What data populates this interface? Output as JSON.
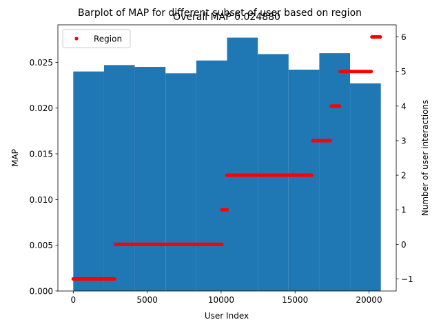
{
  "chart_data": {
    "type": "bar",
    "title": "Barplot of MAP for different subset of user based on region",
    "subtitle": "Overall MAP 0.024880",
    "xlabel": "User Index",
    "ylabel": "MAP",
    "y2label": "Number of user interactions",
    "xlim": [
      -1040,
      21840
    ],
    "ylim": [
      0,
      0.0291
    ],
    "y2lim": [
      -1.35,
      6.35
    ],
    "xticks": [
      0,
      5000,
      10000,
      15000,
      20000
    ],
    "xtick_labels": [
      "0",
      "5000",
      "10000",
      "15000",
      "20000"
    ],
    "yticks": [
      0,
      0.005,
      0.01,
      0.015,
      0.02,
      0.025
    ],
    "ytick_labels": [
      "0.000",
      "0.005",
      "0.010",
      "0.015",
      "0.020",
      "0.025"
    ],
    "y2ticks": [
      -1,
      0,
      1,
      2,
      3,
      4,
      5,
      6
    ],
    "y2tick_labels": [
      "−1",
      "0",
      "1",
      "2",
      "3",
      "4",
      "5",
      "6"
    ],
    "bars": [
      {
        "x0": 0,
        "x1": 2080,
        "value": 0.024
      },
      {
        "x0": 2080,
        "x1": 4160,
        "value": 0.0247
      },
      {
        "x0": 4160,
        "x1": 6240,
        "value": 0.0245
      },
      {
        "x0": 6240,
        "x1": 8320,
        "value": 0.0238
      },
      {
        "x0": 8320,
        "x1": 10400,
        "value": 0.0252
      },
      {
        "x0": 10400,
        "x1": 12480,
        "value": 0.0277
      },
      {
        "x0": 12480,
        "x1": 14560,
        "value": 0.0259
      },
      {
        "x0": 14560,
        "x1": 16640,
        "value": 0.0242
      },
      {
        "x0": 16640,
        "x1": 18720,
        "value": 0.026
      },
      {
        "x0": 18720,
        "x1": 20800,
        "value": 0.0227
      }
    ],
    "series": [
      {
        "name": "Region",
        "color": "#ff0000",
        "segments": [
          {
            "x0": 0,
            "x1": 2850,
            "y": -1
          },
          {
            "x0": 2850,
            "x1": 10050,
            "y": 0
          },
          {
            "x0": 10050,
            "x1": 10400,
            "y": 1
          },
          {
            "x0": 10400,
            "x1": 16200,
            "y": 2
          },
          {
            "x0": 16200,
            "x1": 17450,
            "y": 3
          },
          {
            "x0": 17450,
            "x1": 18050,
            "y": 4
          },
          {
            "x0": 18050,
            "x1": 20200,
            "y": 5
          },
          {
            "x0": 20200,
            "x1": 20800,
            "y": 6
          }
        ]
      }
    ],
    "bar_color": "#1f77b4",
    "legend": {
      "position": "upper-left",
      "label": "Region"
    },
    "grid": false
  }
}
